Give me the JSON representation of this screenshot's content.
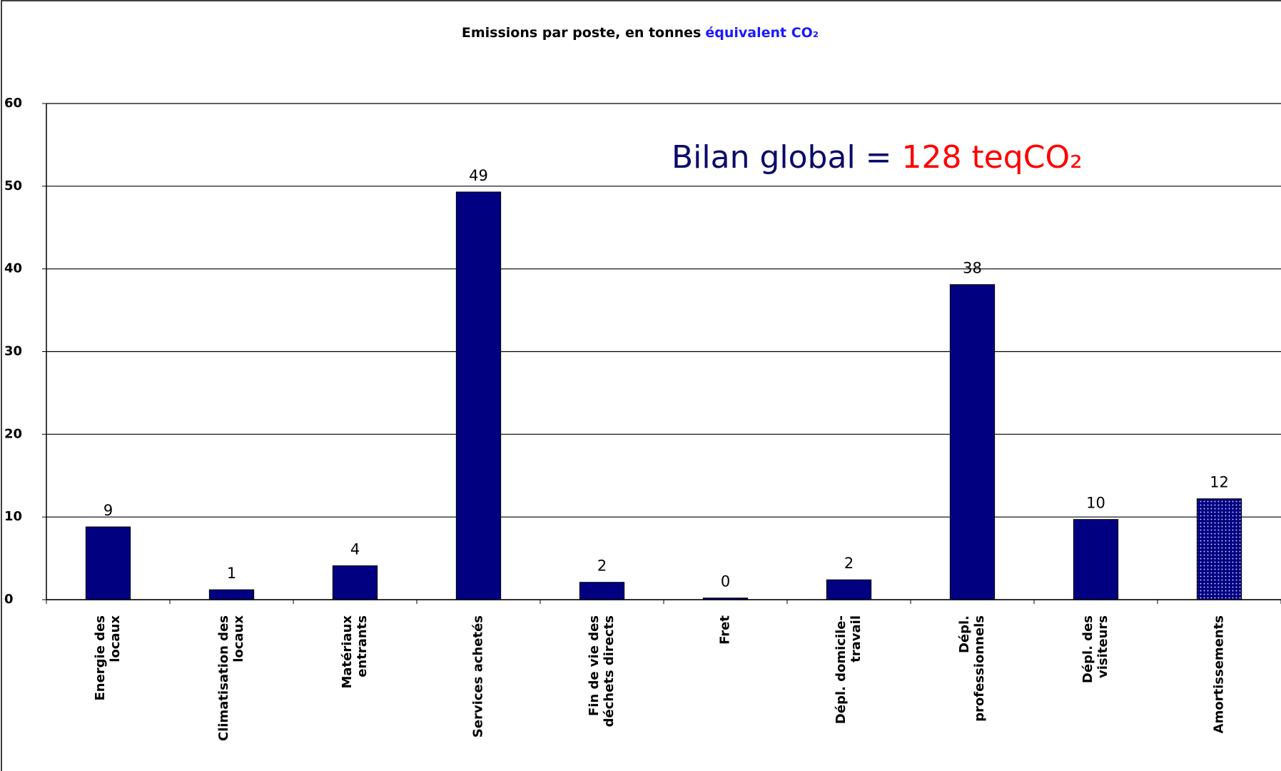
{
  "chart_data": {
    "type": "bar",
    "title": [
      "Emissions par poste, en tonnes",
      "équivalent CO₂"
    ],
    "annotation": [
      "Bilan global =",
      "128 teqCO₂"
    ],
    "categories": [
      [
        "Energie des",
        "locaux"
      ],
      [
        "Climatisation des",
        "locaux"
      ],
      [
        "Matériaux",
        "entrants"
      ],
      [
        "Services achetés"
      ],
      [
        "Fin de vie des",
        "déchets directs"
      ],
      [
        "Fret"
      ],
      [
        "Dépl. domicile-",
        "travail"
      ],
      [
        "Dépl.",
        "professionnels"
      ],
      [
        "Dépl. des",
        "visiteurs"
      ],
      [
        "Amortissements"
      ]
    ],
    "values": [
      8.8,
      1.2,
      4.1,
      49.3,
      2.1,
      0.2,
      2.4,
      38.1,
      9.7,
      12.2
    ],
    "value_labels": [
      "9",
      "1",
      "4",
      "49",
      "2",
      "0",
      "2",
      "38",
      "10",
      "12"
    ],
    "bar_styles": [
      "solid",
      "solid",
      "solid",
      "solid",
      "solid",
      "solid",
      "solid",
      "solid",
      "solid",
      "dotted"
    ],
    "color": "#000080",
    "ylim": [
      0,
      60
    ],
    "yticks": [
      0,
      10,
      20,
      30,
      40,
      50,
      60
    ],
    "grid": true
  }
}
